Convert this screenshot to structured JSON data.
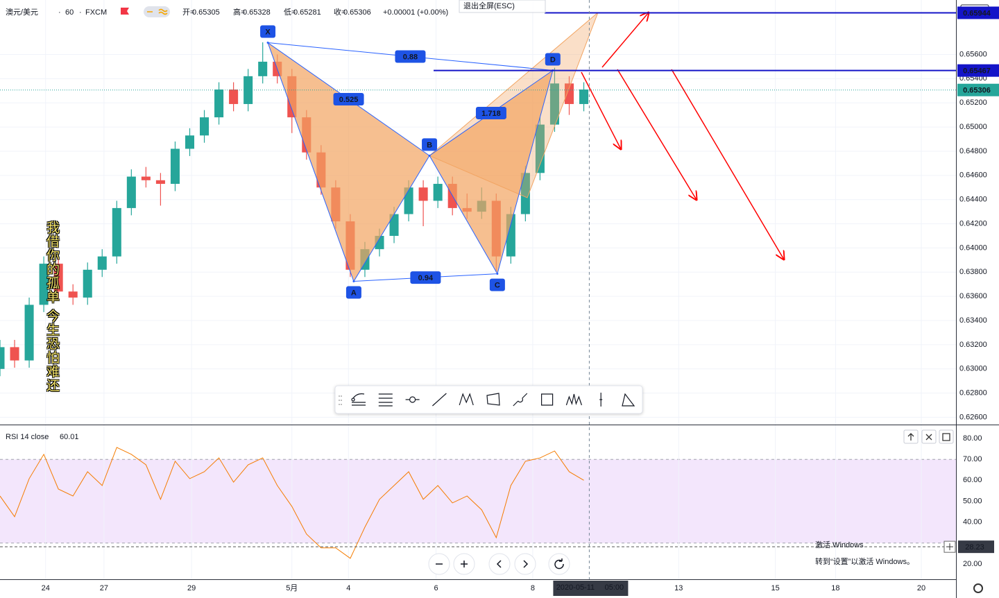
{
  "header": {
    "symbol": "澳元/美元",
    "interval": "60",
    "source": "FXCM",
    "ohlc": [
      {
        "label": "开=",
        "value": 0.65305
      },
      {
        "label": "高=",
        "value": 0.65328
      },
      {
        "label": "低=",
        "value": 0.65281
      },
      {
        "label": "收=",
        "value": 0.65306
      }
    ],
    "change": "+0.00001 (+0.00%)",
    "exit_fullscreen": "退出全屏(ESC)"
  },
  "side_text": "我借你的孤单 今生恐怕难还",
  "watermark": {
    "title": "激活 Windows",
    "subtitle": "转到“设置”以激活 Windows。"
  },
  "chart_data": [
    {
      "type": "candlestick",
      "x": [
        0,
        8,
        16,
        24,
        32,
        40,
        48,
        56,
        64,
        72,
        80,
        88,
        96,
        104,
        112,
        120,
        128,
        136,
        144,
        152,
        160,
        168,
        176,
        184,
        192,
        200,
        208,
        216,
        224,
        232,
        240,
        248,
        256,
        264,
        272,
        280,
        288,
        296,
        304,
        312,
        320
      ],
      "open": [
        0.63,
        0.6318,
        0.6307,
        0.6353,
        0.6387,
        0.6364,
        0.6359,
        0.6382,
        0.6393,
        0.6433,
        0.6459,
        0.6456,
        0.6453,
        0.6482,
        0.6493,
        0.6508,
        0.6531,
        0.6519,
        0.6542,
        0.6554,
        0.6542,
        0.6508,
        0.6479,
        0.645,
        0.6422,
        0.6382,
        0.6399,
        0.641,
        0.6428,
        0.645,
        0.6439,
        0.6453,
        0.6433,
        0.643,
        0.6439,
        0.6393,
        0.6428,
        0.6462,
        0.6502,
        0.6536,
        0.6519
      ],
      "high": [
        0.6324,
        0.6324,
        0.6359,
        0.6393,
        0.6393,
        0.637,
        0.6388,
        0.6399,
        0.6439,
        0.6465,
        0.6467,
        0.6462,
        0.6488,
        0.6499,
        0.6514,
        0.6537,
        0.6537,
        0.6548,
        0.657,
        0.656,
        0.6548,
        0.6514,
        0.6485,
        0.6456,
        0.6428,
        0.6405,
        0.6416,
        0.6434,
        0.6456,
        0.6456,
        0.6459,
        0.6459,
        0.6445,
        0.645,
        0.6445,
        0.6434,
        0.6468,
        0.6508,
        0.6549,
        0.6542,
        0.6537
      ],
      "low": [
        0.6294,
        0.6301,
        0.6301,
        0.6347,
        0.6358,
        0.6353,
        0.6353,
        0.6376,
        0.6387,
        0.6427,
        0.645,
        0.6435,
        0.6447,
        0.6476,
        0.6487,
        0.6502,
        0.6513,
        0.6513,
        0.6536,
        0.6536,
        0.6495,
        0.6473,
        0.6444,
        0.6416,
        0.6376,
        0.6376,
        0.6393,
        0.6404,
        0.6422,
        0.6418,
        0.6433,
        0.6427,
        0.6424,
        0.6424,
        0.638,
        0.6387,
        0.6422,
        0.6456,
        0.6496,
        0.651,
        0.6513
      ],
      "close": [
        0.6318,
        0.6307,
        0.6353,
        0.6387,
        0.6364,
        0.6359,
        0.6382,
        0.6393,
        0.6433,
        0.6459,
        0.6456,
        0.6453,
        0.6482,
        0.6493,
        0.6508,
        0.6531,
        0.6519,
        0.6542,
        0.6554,
        0.6542,
        0.6508,
        0.6479,
        0.645,
        0.6422,
        0.6382,
        0.6399,
        0.641,
        0.6428,
        0.645,
        0.6439,
        0.6453,
        0.6433,
        0.643,
        0.6439,
        0.6393,
        0.6428,
        0.6462,
        0.6502,
        0.6536,
        0.6519,
        0.6531
      ],
      "up_color": "#26a69a",
      "down_color": "#ef5350",
      "xlim": [
        0,
        524
      ],
      "ylim": [
        0.6254,
        0.6605
      ],
      "xticks": [
        {
          "value": 25,
          "label": "24"
        },
        {
          "value": 57,
          "label": "27"
        },
        {
          "value": 105,
          "label": "29"
        },
        {
          "value": 160,
          "label": "5月"
        },
        {
          "value": 191,
          "label": "4"
        },
        {
          "value": 239,
          "label": "6"
        },
        {
          "value": 292,
          "label": "8"
        },
        {
          "value": 372,
          "label": "13"
        },
        {
          "value": 425,
          "label": "15"
        },
        {
          "value": 458,
          "label": "18"
        },
        {
          "value": 505,
          "label": "20"
        }
      ],
      "yticks": [
        {
          "value": 0.656,
          "label": "0.65600"
        },
        {
          "value": 0.654,
          "label": "0.65400"
        },
        {
          "value": 0.652,
          "label": "0.65200"
        },
        {
          "value": 0.65,
          "label": "0.65000"
        },
        {
          "value": 0.648,
          "label": "0.64800"
        },
        {
          "value": 0.646,
          "label": "0.64600"
        },
        {
          "value": 0.644,
          "label": "0.64400"
        },
        {
          "value": 0.642,
          "label": "0.64200"
        },
        {
          "value": 0.64,
          "label": "0.64000"
        },
        {
          "value": 0.638,
          "label": "0.63800"
        },
        {
          "value": 0.636,
          "label": "0.63600"
        },
        {
          "value": 0.634,
          "label": "0.63400"
        },
        {
          "value": 0.632,
          "label": "0.63200"
        },
        {
          "value": 0.63,
          "label": "0.63000"
        },
        {
          "value": 0.628,
          "label": "0.62800"
        },
        {
          "value": 0.626,
          "label": "0.62600"
        }
      ],
      "grid": true,
      "currency": "USD",
      "hlines": [
        0.65944,
        0.65467
      ],
      "hline_color": "#1414c8",
      "last_price": 0.65306,
      "pattern": {
        "points": [
          {
            "label": "X",
            "x": 146.8,
            "price": 0.65697
          },
          {
            "label": "A",
            "x": 193.9,
            "price": 0.63724
          },
          {
            "label": "B",
            "x": 235.4,
            "price": 0.64763
          },
          {
            "label": "C",
            "x": 272.6,
            "price": 0.63787
          },
          {
            "label": "D",
            "x": 303.0,
            "price": 0.65468
          }
        ],
        "ratios": [
          0.88,
          0.525,
          1.718,
          0.94
        ],
        "line_color": "#2962ff",
        "fill_color": "#f2a461",
        "label_color": "#1e53e5"
      },
      "crosshair": {
        "x": 323,
        "date": "2020-05-11",
        "time": "05:00"
      }
    },
    {
      "type": "line",
      "title": "RSI 14 close",
      "x": [
        0,
        8,
        16,
        24,
        32,
        40,
        48,
        56,
        64,
        72,
        80,
        88,
        96,
        104,
        112,
        120,
        128,
        136,
        144,
        152,
        160,
        168,
        176,
        184,
        192,
        200,
        208,
        216,
        224,
        232,
        240,
        248,
        256,
        264,
        272,
        280,
        288,
        296,
        304,
        312,
        320
      ],
      "values": [
        52.5,
        42.6,
        60.8,
        72.4,
        55.8,
        52.5,
        64.1,
        57.5,
        75.7,
        72.4,
        67.4,
        50.9,
        69.1,
        60.8,
        64.1,
        70.7,
        59.1,
        67.4,
        70.7,
        57.5,
        47.5,
        34.3,
        27.7,
        27.7,
        22.7,
        37.6,
        50.9,
        57.5,
        64.1,
        50.9,
        57.5,
        49.2,
        52.5,
        45.9,
        32.6,
        57.5,
        69.1,
        70.7,
        74.0,
        64.1,
        60.01
      ],
      "color": "#f57c00",
      "xlim": [
        0,
        524
      ],
      "ylim": [
        12.7,
        86.3
      ],
      "yticks": [
        {
          "value": 80,
          "label": "80.00"
        },
        {
          "value": 70,
          "label": "70.00"
        },
        {
          "value": 60,
          "label": "60.00"
        },
        {
          "value": 50,
          "label": "50.00"
        },
        {
          "value": 40,
          "label": "40.00"
        },
        {
          "value": 20,
          "label": "20.00"
        }
      ],
      "band": [
        30,
        70
      ],
      "band_color": "#f3e6fc",
      "hline": 28.23
    }
  ]
}
